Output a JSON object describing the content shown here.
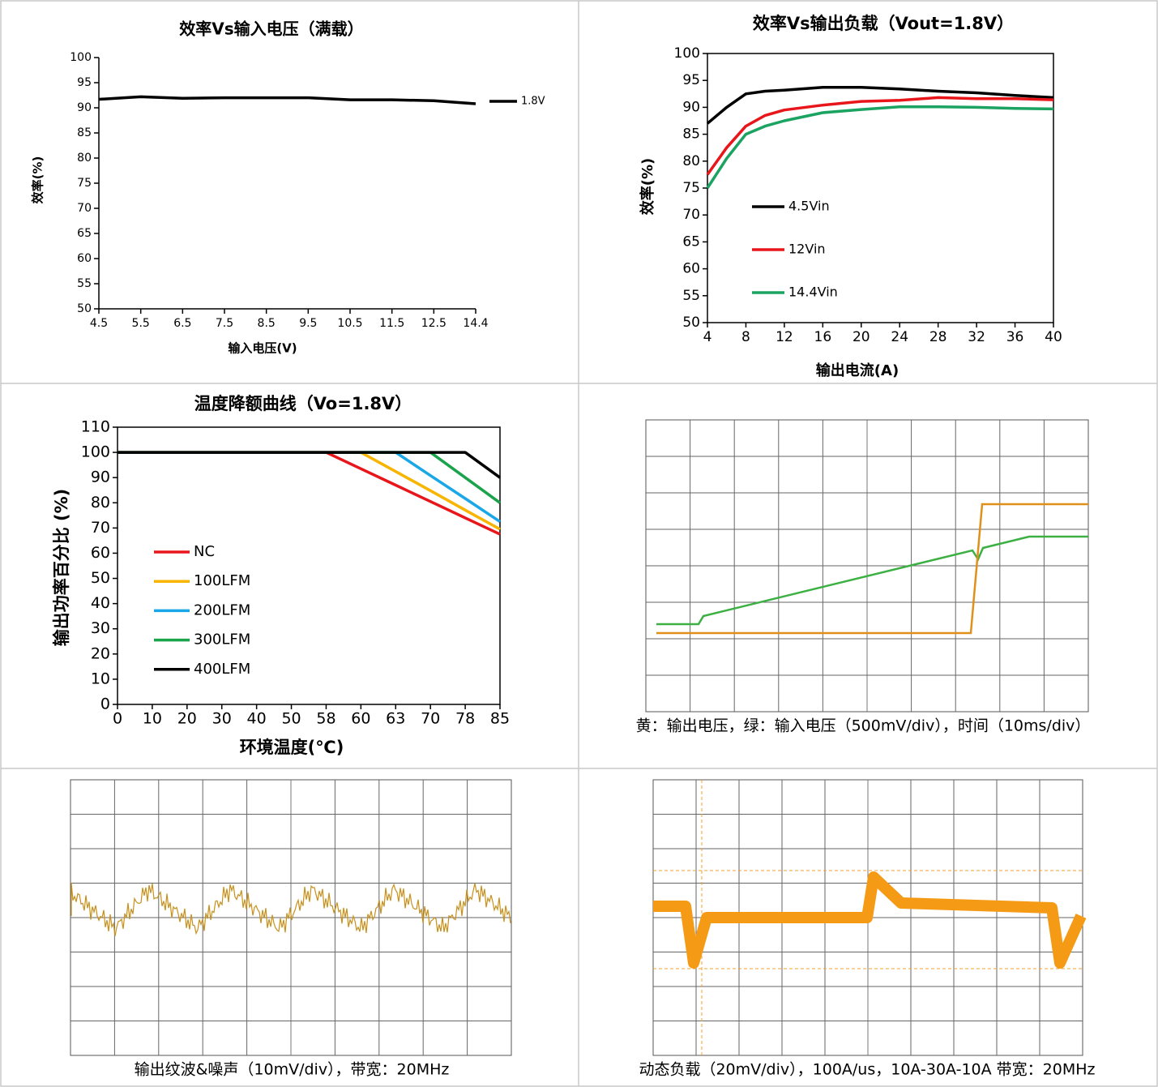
{
  "chart_data": [
    {
      "type": "line",
      "title": "效率Vs输入电压（满载）",
      "x_label": "输入电压(V)",
      "y_label": "效率(%)",
      "categories": [
        "4.5",
        "5.5",
        "6.5",
        "7.5",
        "8.5",
        "9.5",
        "10.5",
        "11.5",
        "12.5",
        "14.4"
      ],
      "series": [
        {
          "name": "1.8V",
          "color": "#000000",
          "values": [
            91.7,
            92.2,
            91.9,
            92.0,
            92.0,
            92.0,
            91.6,
            91.6,
            91.4,
            90.8
          ]
        }
      ],
      "ylim": [
        50,
        100
      ],
      "yticks": [
        50,
        55,
        60,
        65,
        70,
        75,
        80,
        85,
        90,
        95,
        100
      ],
      "legend": "right",
      "grid": false
    },
    {
      "type": "line",
      "title": "效率Vs输出负载（Vout=1.8V）",
      "x_label": "输出电流(A)",
      "y_label": "效率(%)",
      "x": [
        4,
        6,
        8,
        10,
        12,
        16,
        20,
        24,
        28,
        32,
        36,
        40
      ],
      "series": [
        {
          "name": "4.5Vin",
          "color": "#000000",
          "values": [
            87,
            90,
            92.5,
            93,
            93.2,
            93.7,
            93.7,
            93.4,
            93,
            92.7,
            92.2,
            91.8
          ]
        },
        {
          "name": "12Vin",
          "color": "#e8161b",
          "values": [
            77.5,
            82.5,
            86.5,
            88.5,
            89.5,
            90.4,
            91.1,
            91.3,
            91.8,
            91.6,
            91.6,
            91.4
          ]
        },
        {
          "name": "14.4Vin",
          "color": "#1aa361",
          "values": [
            75,
            80.5,
            85,
            86.5,
            87.5,
            89,
            89.6,
            90.1,
            90.1,
            90,
            89.8,
            89.7
          ]
        }
      ],
      "xlim": [
        4,
        40
      ],
      "xticks": [
        4,
        8,
        12,
        16,
        20,
        24,
        28,
        32,
        36,
        40
      ],
      "ylim": [
        50,
        100
      ],
      "yticks": [
        50,
        55,
        60,
        65,
        70,
        75,
        80,
        85,
        90,
        95,
        100
      ],
      "legend": "left",
      "grid": false
    },
    {
      "type": "line",
      "title": "温度降额曲线（Vo=1.8V）",
      "x_label": "环境温度(℃)",
      "y_label": "输出功率百分比 (%)",
      "categories": [
        "0",
        "10",
        "20",
        "30",
        "40",
        "50",
        "58",
        "60",
        "63",
        "70",
        "78",
        "85"
      ],
      "series": [
        {
          "name": "NC",
          "color": "#e8161b",
          "values": [
            100,
            100,
            100,
            100,
            100,
            100,
            100,
            93.5,
            87,
            80.5,
            74,
            67.5
          ]
        },
        {
          "name": "100LFM",
          "color": "#f7b500",
          "values": [
            100,
            100,
            100,
            100,
            100,
            100,
            100,
            100,
            92.4,
            84.8,
            77.1,
            69.5
          ]
        },
        {
          "name": "200LFM",
          "color": "#1aa7e8",
          "values": [
            100,
            100,
            100,
            100,
            100,
            100,
            100,
            100,
            100,
            90.8,
            81.7,
            72.5
          ]
        },
        {
          "name": "300LFM",
          "color": "#1aa34a",
          "values": [
            100,
            100,
            100,
            100,
            100,
            100,
            100,
            100,
            100,
            100,
            90,
            80
          ]
        },
        {
          "name": "400LFM",
          "color": "#000000",
          "values": [
            100,
            100,
            100,
            100,
            100,
            100,
            100,
            100,
            100,
            100,
            100,
            90
          ]
        }
      ],
      "ylim": [
        0,
        110
      ],
      "yticks": [
        0,
        10,
        20,
        30,
        40,
        50,
        60,
        70,
        80,
        90,
        100,
        110
      ],
      "legend": "left",
      "grid": false
    }
  ],
  "scope_captions": [
    "黄：输出电压，绿：输入电压（500mV/div），时间（10ms/div）",
    "输出纹波&噪声（10mV/div），带宽：20MHz",
    "动态负载（20mV/div），100A/us，10A-30A-10A 带宽：20MHz"
  ]
}
